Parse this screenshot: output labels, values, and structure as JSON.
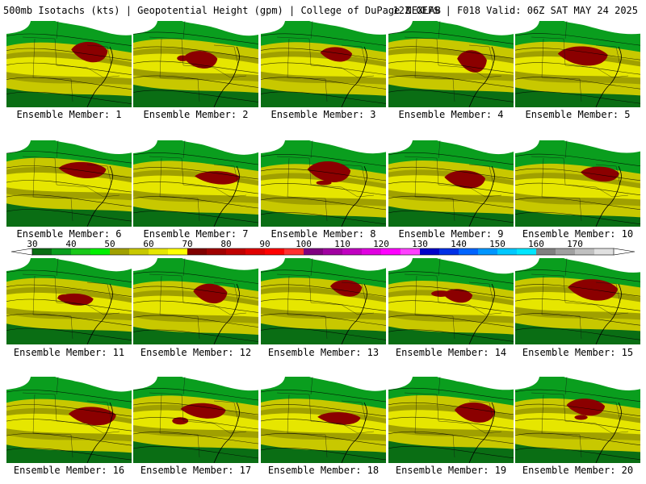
{
  "header": {
    "left": "500mb Isotachs (kts) | Geopotential Height (gpm) | College of DuPage NEXLAB",
    "right": "12Z GEFS | F018 Valid: 06Z SAT MAY 24 2025"
  },
  "panels": [
    {
      "label": "Ensemble Member: 1"
    },
    {
      "label": "Ensemble Member: 2"
    },
    {
      "label": "Ensemble Member: 3"
    },
    {
      "label": "Ensemble Member: 4"
    },
    {
      "label": "Ensemble Member: 5"
    },
    {
      "label": "Ensemble Member: 6"
    },
    {
      "label": "Ensemble Member: 7"
    },
    {
      "label": "Ensemble Member: 8"
    },
    {
      "label": "Ensemble Member: 9"
    },
    {
      "label": "Ensemble Member: 10"
    },
    {
      "label": "Ensemble Member: 11"
    },
    {
      "label": "Ensemble Member: 12"
    },
    {
      "label": "Ensemble Member: 13"
    },
    {
      "label": "Ensemble Member: 14"
    },
    {
      "label": "Ensemble Member: 15"
    },
    {
      "label": "Ensemble Member: 16"
    },
    {
      "label": "Ensemble Member: 17"
    },
    {
      "label": "Ensemble Member: 18"
    },
    {
      "label": "Ensemble Member: 19"
    },
    {
      "label": "Ensemble Member: 20"
    }
  ],
  "colorbar": {
    "labels": [
      "30",
      "40",
      "50",
      "60",
      "70",
      "80",
      "90",
      "100",
      "110",
      "120",
      "130",
      "140",
      "150",
      "160",
      "170"
    ],
    "colors": [
      "#0a6e14",
      "#0a9e1e",
      "#19c819",
      "#00f000",
      "#a0a000",
      "#c8c800",
      "#e6e600",
      "#ffff00",
      "#800000",
      "#a00000",
      "#c00000",
      "#e00000",
      "#ff0000",
      "#ff3030",
      "#800080",
      "#a000a0",
      "#c000c0",
      "#e000e0",
      "#ff00ff",
      "#ff40ff",
      "#0000c8",
      "#0030e6",
      "#0064ff",
      "#0096ff",
      "#00c8ff",
      "#00e6ff",
      "#808080",
      "#a0a0a0",
      "#c0c0c0",
      "#e0e0e0"
    ]
  }
}
